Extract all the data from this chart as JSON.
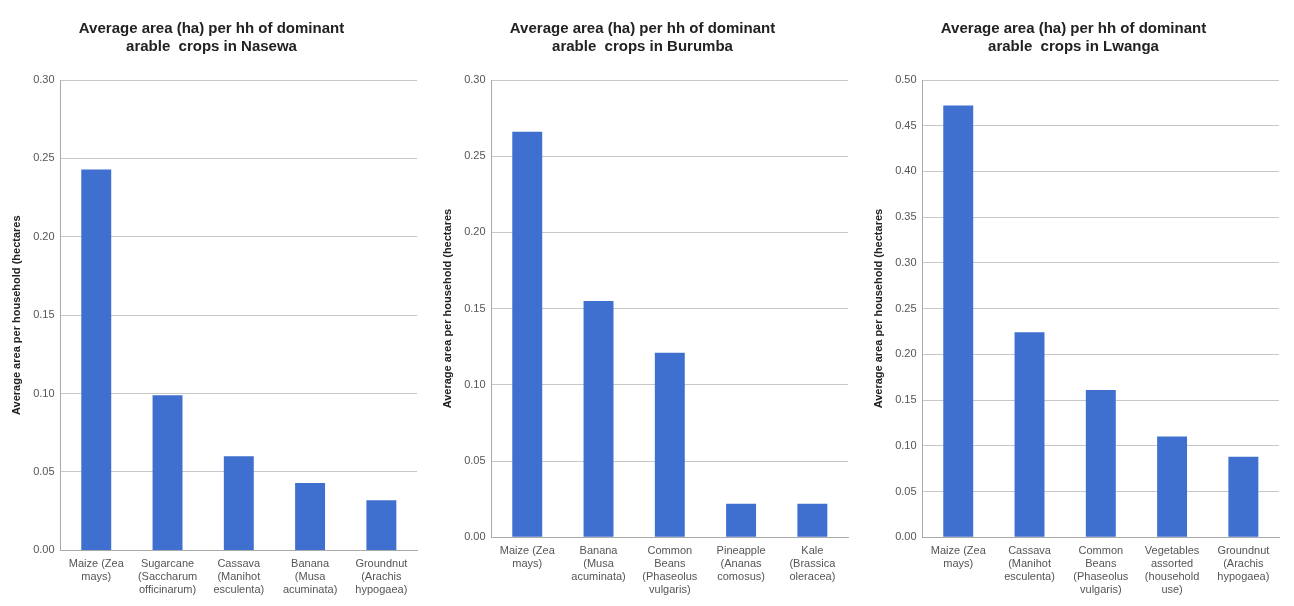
{
  "chart_data": [
    {
      "type": "bar",
      "title": "Average area (ha) per hh of dominant arable  crops in Nasewa",
      "ylabel": "Average area per household (hectares",
      "categories": [
        "Maize (Zea mays)",
        "Sugarcane (Saccharum officinarum)",
        "Cassava (Manihot esculenta)",
        "Banana (Musa acuminata)",
        "Groundnut (Arachis hypogaea)"
      ],
      "values": [
        0.243,
        0.099,
        0.06,
        0.043,
        0.032
      ],
      "color": "#3f6fcf",
      "ylim": [
        0,
        0.3
      ],
      "yticks": [
        {
          "value": 0,
          "label": "0.00"
        },
        {
          "value": 0.05,
          "label": "0.05"
        },
        {
          "value": 0.1,
          "label": "0.10"
        },
        {
          "value": 0.15,
          "label": "0.15"
        },
        {
          "value": 0.2,
          "label": "0.20"
        },
        {
          "value": 0.25,
          "label": "0.25"
        },
        {
          "value": 0.3,
          "label": "0.30"
        }
      ],
      "grid": "y",
      "legend": false
    },
    {
      "type": "bar",
      "title": "Average area (ha) per hh of dominant arable  crops in Burumba",
      "ylabel": "Average area per household (hectares",
      "categories": [
        "Maize (Zea mays)",
        "Banana (Musa acuminata)",
        "Common Beans (Phaseolus vulgaris)",
        "Pineapple (Ananas comosus)",
        "Kale (Brassica oleracea)"
      ],
      "values": [
        0.266,
        0.155,
        0.121,
        0.022,
        0.022
      ],
      "color": "#3f6fcf",
      "ylim": [
        0,
        0.3
      ],
      "yticks": [
        {
          "value": 0,
          "label": "0.00"
        },
        {
          "value": 0.05,
          "label": "0.05"
        },
        {
          "value": 0.1,
          "label": "0.10"
        },
        {
          "value": 0.15,
          "label": "0.15"
        },
        {
          "value": 0.2,
          "label": "0.20"
        },
        {
          "value": 0.25,
          "label": "0.25"
        },
        {
          "value": 0.3,
          "label": "0.30"
        }
      ],
      "grid": "y",
      "legend": false
    },
    {
      "type": "bar",
      "title": "Average area (ha) per hh of dominant arable  crops in Lwanga",
      "ylabel": "Average area per household (hectares",
      "categories": [
        "Maize (Zea mays)",
        "Cassava (Manihot esculenta)",
        "Common Beans (Phaseolus vulgaris)",
        "Vegetables assorted (household use)",
        "Groundnut (Arachis hypogaea)"
      ],
      "values": [
        0.472,
        0.224,
        0.161,
        0.11,
        0.088
      ],
      "color": "#3f6fcf",
      "ylim": [
        0,
        0.5
      ],
      "yticks": [
        {
          "value": 0,
          "label": "0.00"
        },
        {
          "value": 0.05,
          "label": "0.05"
        },
        {
          "value": 0.1,
          "label": "0.10"
        },
        {
          "value": 0.15,
          "label": "0.15"
        },
        {
          "value": 0.2,
          "label": "0.20"
        },
        {
          "value": 0.25,
          "label": "0.25"
        },
        {
          "value": 0.3,
          "label": "0.30"
        },
        {
          "value": 0.35,
          "label": "0.35"
        },
        {
          "value": 0.4,
          "label": "0.40"
        },
        {
          "value": 0.45,
          "label": "0.45"
        },
        {
          "value": 0.5,
          "label": "0.50"
        }
      ],
      "grid": "y",
      "legend": false
    }
  ]
}
